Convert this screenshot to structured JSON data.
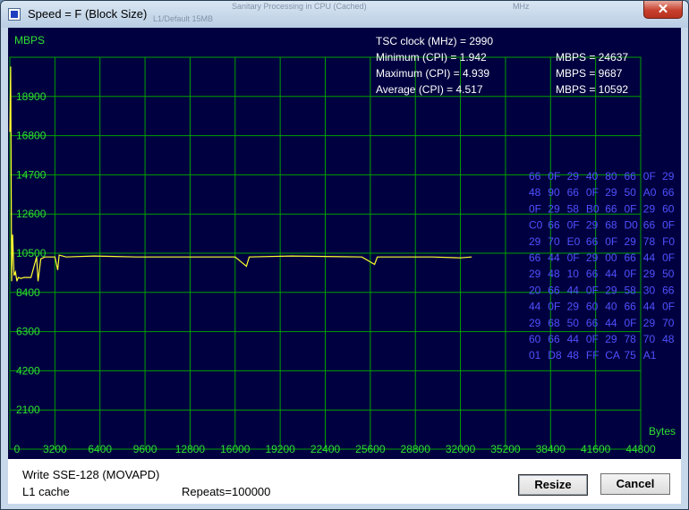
{
  "window": {
    "title": "Speed = F (Block Size)",
    "background_title_fragments": [
      "Sanitary Processing in CPU (Cached)",
      "L1/Default 15MB",
      "MHz"
    ]
  },
  "chart_data": {
    "type": "line",
    "ylabel": "MBPS",
    "xlabel": "Bytes",
    "y_ticks": [
      "18900",
      "16800",
      "14700",
      "12600",
      "10500",
      "8400",
      "6300",
      "4200",
      "2100"
    ],
    "x_ticks": [
      "0",
      "3200",
      "6400",
      "9600",
      "12800",
      "16000",
      "19200",
      "22400",
      "25600",
      "28800",
      "32000",
      "35200",
      "38400",
      "41600",
      "44800"
    ],
    "xlim": [
      0,
      47000
    ],
    "ylim": [
      0,
      21000
    ],
    "grid": true,
    "series": [
      {
        "color": "#ffff30",
        "x": [
          0,
          60,
          130,
          200,
          300,
          400,
          500,
          600,
          800,
          1000,
          1500,
          1900,
          2000,
          2200,
          2500,
          3200,
          3400,
          3500,
          4000,
          6000,
          9000,
          12000,
          16000,
          16800,
          17000,
          20000,
          25000,
          25900,
          26100,
          30000,
          32000,
          32800
        ],
        "y": [
          17000,
          20500,
          9000,
          11500,
          9300,
          9500,
          9000,
          9200,
          9150,
          9200,
          9200,
          10300,
          9000,
          10200,
          10300,
          10300,
          9600,
          10400,
          10300,
          10350,
          10300,
          10300,
          10300,
          9800,
          10300,
          10350,
          10300,
          9900,
          10300,
          10300,
          10250,
          10300
        ]
      }
    ],
    "annotations": {
      "stats": [
        {
          "label": "TSC clock (MHz)",
          "value": "2990",
          "text": "TSC clock (MHz)  = 2990"
        },
        {
          "label": "Minimum (CPI)",
          "value": "1.942",
          "text": "Minimum (CPI) = 1.942",
          "mbps": "MBPS = 24637"
        },
        {
          "label": "Maximum (CPI)",
          "value": "4.939",
          "text": "Maximum (CPI) = 4.939",
          "mbps": "MBPS = 9687"
        },
        {
          "label": "Average (CPI)",
          "value": "4.517",
          "text": "Average (CPI) = 4.517",
          "mbps": "MBPS = 10592"
        }
      ],
      "hex_lines": [
        "66  0F  29  40  80  66  0F  29",
        "48  90  66  0F  29  50  A0  66",
        "0F  29  58  B0  66  0F  29  60",
        "C0  66  0F  29  68  D0  66  0F",
        "29  70  E0  66  0F  29  78  F0",
        "66  44  0F  29  00  66  44  0F",
        "29  48  10  66  44  0F  29  50",
        "20  66  44  0F  29  58  30  66",
        "44  0F  29  60  40  66  44  0F",
        "29  68  50  66  44  0F  29  70",
        "60  66  44  0F  29  78  70  48",
        "01  D8  48  FF  CA  75  A1"
      ]
    },
    "colors": {
      "background": "#000040",
      "grid": "#00a000",
      "axis_text": "#30e030",
      "stats_text": "#ffffff",
      "hex_text": "#5050ff"
    }
  },
  "status": {
    "instruction": "Write SSE-128 (MOVAPD)",
    "cache": "L1 cache",
    "repeats": "Repeats=100000"
  },
  "buttons": {
    "resize": "Resize",
    "cancel": "Cancel",
    "close": "✕"
  }
}
